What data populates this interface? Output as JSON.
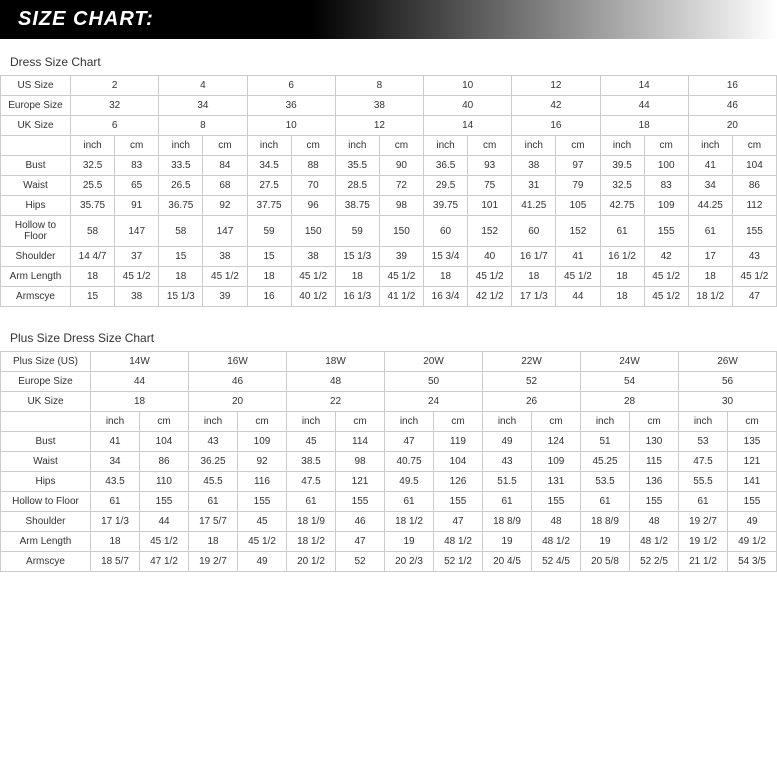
{
  "header": "SIZE CHART:",
  "chart1": {
    "title": "Dress Size Chart",
    "sizeRows": [
      {
        "label": "US Size",
        "values": [
          "2",
          "4",
          "6",
          "8",
          "10",
          "12",
          "14",
          "16"
        ]
      },
      {
        "label": "Europe Size",
        "values": [
          "32",
          "34",
          "36",
          "38",
          "40",
          "42",
          "44",
          "46"
        ]
      },
      {
        "label": "UK Size",
        "values": [
          "6",
          "8",
          "10",
          "12",
          "14",
          "16",
          "18",
          "20"
        ]
      }
    ],
    "units": [
      "inch",
      "cm"
    ],
    "measureRows": [
      {
        "label": "Bust",
        "cells": [
          "32.5",
          "83",
          "33.5",
          "84",
          "34.5",
          "88",
          "35.5",
          "90",
          "36.5",
          "93",
          "38",
          "97",
          "39.5",
          "100",
          "41",
          "104"
        ]
      },
      {
        "label": "Waist",
        "cells": [
          "25.5",
          "65",
          "26.5",
          "68",
          "27.5",
          "70",
          "28.5",
          "72",
          "29.5",
          "75",
          "31",
          "79",
          "32.5",
          "83",
          "34",
          "86"
        ]
      },
      {
        "label": "Hips",
        "cells": [
          "35.75",
          "91",
          "36.75",
          "92",
          "37.75",
          "96",
          "38.75",
          "98",
          "39.75",
          "101",
          "41.25",
          "105",
          "42.75",
          "109",
          "44.25",
          "112"
        ]
      },
      {
        "label": "Hollow to Floor",
        "cells": [
          "58",
          "147",
          "58",
          "147",
          "59",
          "150",
          "59",
          "150",
          "60",
          "152",
          "60",
          "152",
          "61",
          "155",
          "61",
          "155"
        ]
      },
      {
        "label": "Shoulder",
        "cells": [
          "14 4/7",
          "37",
          "15",
          "38",
          "15",
          "38",
          "15 1/3",
          "39",
          "15 3/4",
          "40",
          "16 1/7",
          "41",
          "16 1/2",
          "42",
          "17",
          "43"
        ]
      },
      {
        "label": "Arm Length",
        "cells": [
          "18",
          "45 1/2",
          "18",
          "45 1/2",
          "18",
          "45 1/2",
          "18",
          "45 1/2",
          "18",
          "45 1/2",
          "18",
          "45 1/2",
          "18",
          "45 1/2",
          "18",
          "45 1/2"
        ]
      },
      {
        "label": "Armscye",
        "cells": [
          "15",
          "38",
          "15 1/3",
          "39",
          "16",
          "40 1/2",
          "16 1/3",
          "41 1/2",
          "16 3/4",
          "42 1/2",
          "17 1/3",
          "44",
          "18",
          "45 1/2",
          "18 1/2",
          "47"
        ]
      }
    ]
  },
  "chart2": {
    "title": "Plus Size Dress Size Chart",
    "sizeRows": [
      {
        "label": "Plus Size (US)",
        "values": [
          "14W",
          "16W",
          "18W",
          "20W",
          "22W",
          "24W",
          "26W"
        ]
      },
      {
        "label": "Europe Size",
        "values": [
          "44",
          "46",
          "48",
          "50",
          "52",
          "54",
          "56"
        ]
      },
      {
        "label": "UK Size",
        "values": [
          "18",
          "20",
          "22",
          "24",
          "26",
          "28",
          "30"
        ]
      }
    ],
    "units": [
      "inch",
      "cm"
    ],
    "measureRows": [
      {
        "label": "Bust",
        "cells": [
          "41",
          "104",
          "43",
          "109",
          "45",
          "114",
          "47",
          "119",
          "49",
          "124",
          "51",
          "130",
          "53",
          "135"
        ]
      },
      {
        "label": "Waist",
        "cells": [
          "34",
          "86",
          "36.25",
          "92",
          "38.5",
          "98",
          "40.75",
          "104",
          "43",
          "109",
          "45.25",
          "115",
          "47.5",
          "121"
        ]
      },
      {
        "label": "Hips",
        "cells": [
          "43.5",
          "110",
          "45.5",
          "116",
          "47.5",
          "121",
          "49.5",
          "126",
          "51.5",
          "131",
          "53.5",
          "136",
          "55.5",
          "141"
        ]
      },
      {
        "label": "Hollow to Floor",
        "cells": [
          "61",
          "155",
          "61",
          "155",
          "61",
          "155",
          "61",
          "155",
          "61",
          "155",
          "61",
          "155",
          "61",
          "155"
        ]
      },
      {
        "label": "Shoulder",
        "cells": [
          "17 1/3",
          "44",
          "17 5/7",
          "45",
          "18 1/9",
          "46",
          "18 1/2",
          "47",
          "18 8/9",
          "48",
          "18 8/9",
          "48",
          "19 2/7",
          "49"
        ]
      },
      {
        "label": "Arm Length",
        "cells": [
          "18",
          "45 1/2",
          "18",
          "45 1/2",
          "18 1/2",
          "47",
          "19",
          "48 1/2",
          "19",
          "48 1/2",
          "19",
          "48 1/2",
          "19 1/2",
          "49 1/2"
        ]
      },
      {
        "label": "Armscye",
        "cells": [
          "18 5/7",
          "47 1/2",
          "19 2/7",
          "49",
          "20 1/2",
          "52",
          "20 2/3",
          "52 1/2",
          "20 4/5",
          "52 4/5",
          "20 5/8",
          "52 2/5",
          "21 1/2",
          "54 3/5"
        ]
      }
    ]
  },
  "colors": {
    "border": "#cccccc",
    "text": "#333333",
    "headerBg": "#000000",
    "headerText": "#ffffff"
  }
}
